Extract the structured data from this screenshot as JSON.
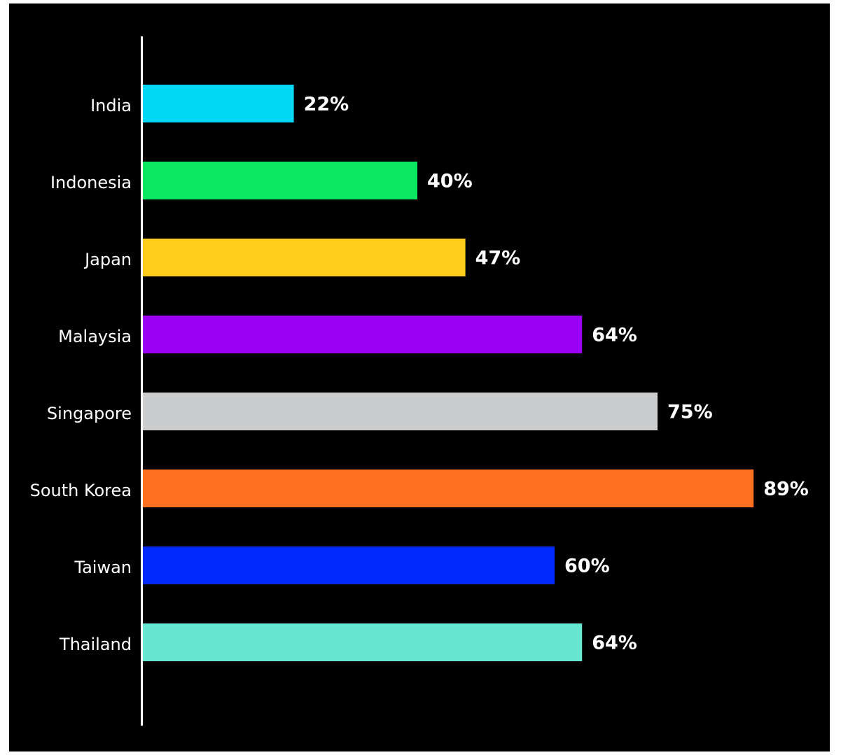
{
  "chart_data": {
    "type": "bar",
    "orientation": "horizontal",
    "categories": [
      "India",
      "Indonesia",
      "Japan",
      "Malaysia",
      "Singapore",
      "South Korea",
      "Taiwan",
      "Thailand"
    ],
    "values": [
      22,
      40,
      47,
      64,
      75,
      89,
      60,
      64
    ],
    "value_labels": [
      "22%",
      "40%",
      "47%",
      "64%",
      "75%",
      "89%",
      "60%",
      "64%"
    ],
    "colors": [
      "#00d8f6",
      "#0ae862",
      "#ffcc1c",
      "#9b00f2",
      "#cbcccd",
      "#ff7020",
      "#0129fb",
      "#67e6d2"
    ],
    "background": "#000000",
    "text_color": "#ffffff",
    "axis_color": "#ffffff",
    "xlim": [
      0,
      100
    ],
    "grid": false,
    "legend": "none",
    "title": "",
    "xlabel": "",
    "ylabel": ""
  }
}
